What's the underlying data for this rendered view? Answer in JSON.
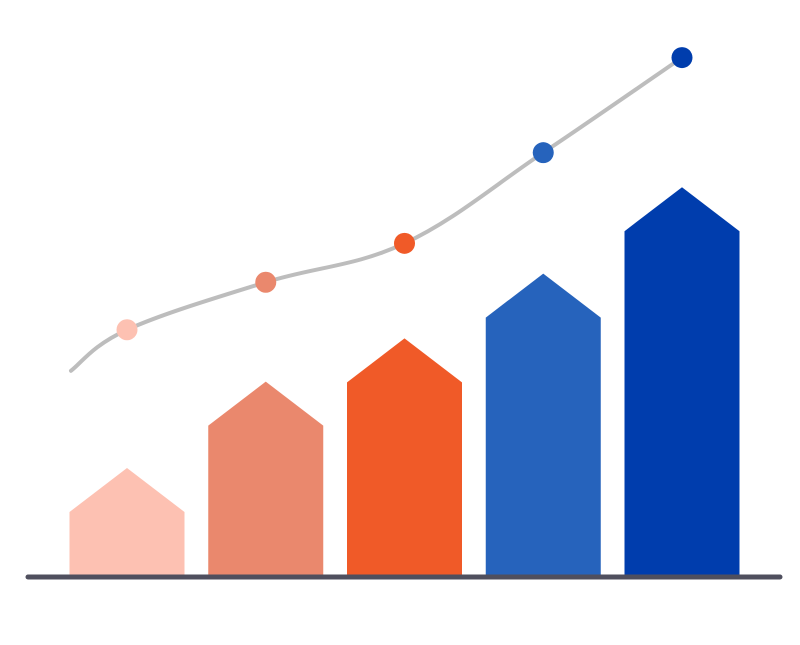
{
  "chart_data": {
    "type": "bar",
    "title": "",
    "xlabel": "",
    "ylabel": "",
    "categories": [
      "",
      "",
      "",
      "",
      ""
    ],
    "values": [
      25,
      45,
      55,
      70,
      90
    ],
    "bar_colors": [
      "#FDC1B2",
      "#EA886D",
      "#F05A28",
      "#2663BC",
      "#003DAD"
    ],
    "trend_line": {
      "values": [
        57,
        68,
        77,
        98,
        120
      ],
      "point_colors": [
        "#FDC1B2",
        "#EA886D",
        "#F05A28",
        "#2663BC",
        "#003DAD"
      ],
      "line_color": "#BDBDBD"
    },
    "ylim": [
      0,
      125
    ],
    "grid": false,
    "legend": "none",
    "baseline_color": "#4F4F5E"
  }
}
